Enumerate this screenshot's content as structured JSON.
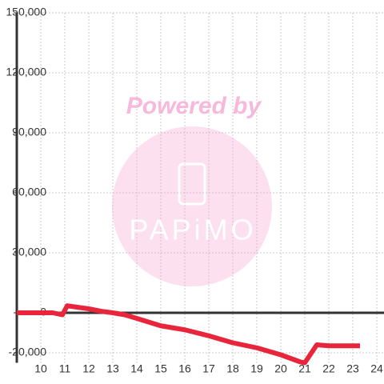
{
  "chart_data": {
    "type": "line",
    "watermark": {
      "text": "Powered by",
      "logo": "PAPiMO"
    },
    "series": [
      {
        "color": "#e8253a",
        "x": [
          9,
          10.5,
          10.9,
          11.1,
          12,
          12.5,
          13,
          13.5,
          14,
          15,
          16,
          17,
          18,
          19,
          20,
          20.8,
          21,
          21.5,
          22,
          23.3
        ],
        "values": [
          0,
          0,
          -1000,
          3500,
          2000,
          800,
          0,
          -1000,
          -2800,
          -6500,
          -8500,
          -11500,
          -15000,
          -17500,
          -21000,
          -24500,
          -25000,
          -16000,
          -16500,
          -16500
        ]
      }
    ],
    "xlim": [
      9,
      24.3
    ],
    "ylim": [
      -25000,
      150000
    ],
    "xticks": [
      10,
      11,
      12,
      13,
      14,
      15,
      16,
      17,
      18,
      19,
      20,
      21,
      22,
      23,
      24
    ],
    "yticks": [
      {
        "value": -20000,
        "label": "-20,000"
      },
      0,
      {
        "value": 30000,
        "label": "30,000"
      },
      {
        "value": 60000,
        "label": "60,000"
      },
      {
        "value": 90000,
        "label": "90,000"
      },
      {
        "value": 120000,
        "label": "120,000"
      },
      {
        "value": 150000,
        "label": "150,000"
      }
    ],
    "grid": true
  }
}
